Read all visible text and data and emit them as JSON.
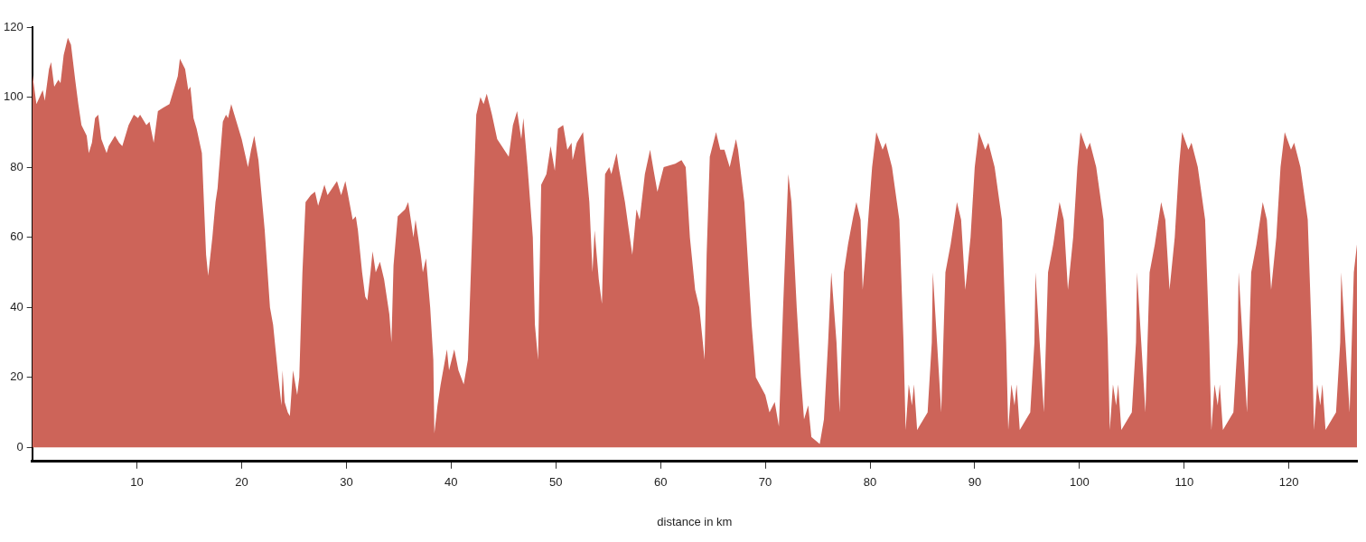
{
  "chart_data": {
    "type": "area",
    "xlabel": "distance in km",
    "xlim": [
      0,
      126.5
    ],
    "ylim": [
      -4,
      120
    ],
    "xticks": [
      10,
      20,
      30,
      40,
      50,
      60,
      70,
      80,
      90,
      100,
      110,
      120
    ],
    "yticks": [
      0,
      20,
      40,
      60,
      80,
      100,
      120
    ],
    "grid": false,
    "legend": false,
    "series": [
      {
        "color": "#cd6459",
        "x": [
          0,
          0.4,
          1.0,
          1.2,
          1.6,
          1.8,
          2.1,
          2.5,
          2.7,
          3.0,
          3.4,
          3.7,
          4.1,
          4.4,
          4.7,
          5.2,
          5.4,
          5.7,
          6.0,
          6.3,
          6.6,
          7.1,
          7.3,
          7.9,
          8.3,
          8.6,
          9.2,
          9.7,
          10.1,
          10.3,
          10.9,
          11.2,
          11.6,
          12.0,
          12.5,
          13.1,
          13.6,
          13.9,
          14.1,
          14.6,
          14.9,
          15.1,
          15.4,
          15.7,
          16.2,
          16.6,
          16.8,
          17.2,
          17.5,
          17.7,
          17.8,
          18.2,
          18.5,
          18.7,
          19.0,
          19.2,
          19.6,
          20.0,
          20.6,
          20.9,
          21.2,
          21.6,
          22.2,
          22.7,
          23.0,
          23.5,
          23.8,
          23.9,
          24.1,
          24.4,
          24.6,
          24.9,
          25.3,
          25.5,
          25.8,
          26.1,
          26.6,
          27.0,
          27.3,
          27.9,
          28.2,
          29.1,
          29.5,
          29.9,
          30.1,
          30.6,
          30.9,
          31.1,
          31.5,
          31.8,
          32.0,
          32.3,
          32.5,
          32.8,
          33.2,
          33.6,
          34.1,
          34.3,
          34.5,
          34.9,
          35.6,
          35.9,
          36.4,
          36.6,
          37.1,
          37.3,
          37.6,
          38.0,
          38.3,
          38.4,
          38.7,
          39.0,
          39.6,
          39.8,
          40.3,
          40.7,
          41.2,
          41.6,
          42.0,
          42.4,
          42.8,
          43.1,
          43.4,
          43.9,
          44.4,
          45.5,
          45.9,
          46.3,
          46.7,
          46.9,
          47.3,
          47.8,
          48.0,
          48.3,
          48.6,
          49.1,
          49.5,
          49.9,
          50.2,
          50.7,
          51.1,
          51.5,
          51.6,
          52.0,
          52.6,
          52.9,
          53.2,
          53.5,
          53.7,
          54.1,
          54.4,
          54.7,
          55.1,
          55.3,
          55.8,
          56.0,
          56.6,
          57.3,
          57.7,
          58.0,
          58.5,
          59.0,
          59.4,
          59.7,
          60.3,
          61.4,
          62.0,
          62.4,
          62.8,
          63.3,
          63.7,
          64.2,
          64.4,
          64.7,
          65.3,
          65.7,
          66.1,
          66.6,
          67.2,
          67.4,
          68.0,
          68.3,
          68.7,
          69.1,
          70.0,
          70.4,
          70.9,
          71.3,
          71.7,
          72.2,
          72.5,
          73.0,
          73.4,
          73.7,
          74.1,
          74.4,
          75.2,
          75.6,
          76.0,
          76.3,
          76.8,
          77.1,
          77.5,
          77.9,
          78.4,
          78.7,
          79.1,
          79.3,
          79.7,
          80.2,
          80.6,
          81.2,
          81.5,
          82.1,
          82.8,
          83.2,
          83.4,
          83.7,
          84.0,
          84.2,
          84.5,
          85.1,
          85.5,
          85.9,
          86.0,
          86.4,
          86.8,
          87.2,
          87.7,
          88.1,
          88.3,
          88.7,
          89.1,
          89.6,
          90.0,
          90.4,
          91.0,
          91.3,
          91.9,
          92.6,
          93.0,
          93.2,
          93.5,
          93.8,
          94.0,
          94.3,
          94.9,
          95.3,
          95.7,
          95.8,
          96.2,
          96.6,
          97.0,
          97.5,
          97.9,
          98.1,
          98.5,
          98.9,
          99.4,
          99.8,
          100.1,
          100.7,
          101.0,
          101.6,
          102.3,
          102.7,
          102.9,
          103.2,
          103.5,
          103.7,
          104.0,
          104.6,
          105.0,
          105.4,
          105.5,
          105.9,
          106.3,
          106.7,
          107.2,
          107.6,
          107.8,
          108.2,
          108.6,
          109.1,
          109.5,
          109.8,
          110.4,
          110.7,
          111.3,
          112.0,
          112.4,
          112.6,
          112.9,
          113.2,
          113.4,
          113.7,
          114.3,
          114.7,
          115.1,
          115.2,
          115.6,
          116.0,
          116.4,
          116.9,
          117.3,
          117.5,
          117.9,
          118.3,
          118.8,
          119.2,
          119.6,
          120.2,
          120.5,
          121.1,
          121.8,
          122.2,
          122.4,
          122.7,
          123.0,
          123.2,
          123.5,
          124.1,
          124.5,
          124.9,
          125.0,
          125.4,
          125.8,
          126.2,
          126.5
        ],
        "values": [
          107,
          98,
          102,
          99,
          108,
          110,
          103,
          105,
          104,
          112,
          117,
          115,
          105,
          98,
          92,
          89,
          84,
          87,
          94,
          95,
          88,
          84,
          86,
          89,
          87,
          86,
          92,
          95,
          94,
          95,
          92,
          93,
          87,
          96,
          97,
          98,
          103,
          106,
          111,
          108,
          102,
          103,
          94,
          91,
          84,
          55,
          49,
          60,
          70,
          74,
          78,
          93,
          95,
          94,
          98,
          96,
          92,
          88,
          80,
          85,
          89,
          82,
          62,
          40,
          35,
          20,
          12,
          22,
          13,
          10,
          9,
          22,
          15,
          20,
          50,
          70,
          72,
          73,
          69,
          75,
          72,
          76,
          72,
          76,
          73,
          65,
          66,
          62,
          50,
          43,
          42,
          50,
          56,
          50,
          53,
          48,
          38,
          30,
          52,
          66,
          68,
          70,
          60,
          65,
          55,
          50,
          54,
          40,
          25,
          4,
          12,
          18,
          28,
          22,
          28,
          22,
          18,
          25,
          60,
          95,
          100,
          98,
          101,
          95,
          88,
          83,
          92,
          96,
          88,
          94,
          80,
          60,
          35,
          25,
          75,
          78,
          86,
          79,
          91,
          92,
          85,
          87,
          82,
          87,
          90,
          80,
          70,
          50,
          62,
          48,
          41,
          78,
          80,
          78,
          84,
          80,
          70,
          55,
          68,
          65,
          78,
          85,
          78,
          73,
          80,
          81,
          82,
          80,
          60,
          45,
          40,
          25,
          55,
          83,
          90,
          85,
          85,
          80,
          88,
          85,
          70,
          55,
          35,
          20,
          15,
          10,
          13,
          6,
          40,
          78,
          70,
          40,
          20,
          8,
          12,
          3,
          1,
          8,
          30,
          50,
          30,
          10,
          50,
          58,
          66,
          70,
          65,
          45,
          60,
          80,
          90,
          85,
          87,
          80,
          65,
          30,
          5,
          18,
          12,
          18,
          5,
          8,
          10,
          30,
          50,
          30,
          10,
          50,
          58,
          66,
          70,
          65,
          45,
          60,
          80,
          90,
          85,
          87,
          80,
          65,
          30,
          5,
          18,
          12,
          18,
          5,
          8,
          10,
          30,
          50,
          30,
          10,
          50,
          58,
          66,
          70,
          65,
          45,
          60,
          80,
          90,
          85,
          87,
          80,
          65,
          30,
          5,
          18,
          12,
          18,
          5,
          8,
          10,
          30,
          50,
          30,
          10,
          50,
          58,
          66,
          70,
          65,
          45,
          60,
          80,
          90,
          85,
          87,
          80,
          65,
          30,
          5,
          18,
          12,
          18,
          5,
          8,
          10,
          30,
          50,
          30,
          10,
          50,
          58,
          66,
          70,
          65,
          45,
          60,
          80,
          90,
          85,
          87,
          80,
          65,
          30,
          5,
          18,
          12,
          18,
          5,
          8,
          10,
          30,
          50,
          30,
          10,
          50,
          58
        ]
      }
    ]
  }
}
